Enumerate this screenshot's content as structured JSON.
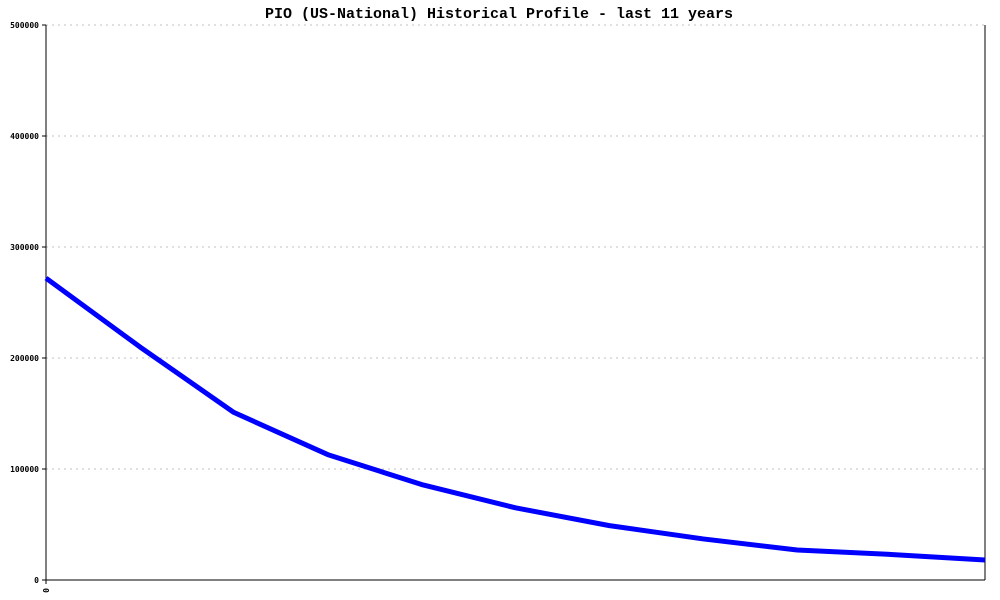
{
  "chart_data": {
    "type": "line",
    "title": "PIO (US-National) Historical Profile - last 11 years",
    "xlabel": "",
    "ylabel": "",
    "ylim": [
      0,
      500000
    ],
    "yticks": [
      "0",
      "100000",
      "200000",
      "300000",
      "400000",
      "500000"
    ],
    "xticks": [
      "0"
    ],
    "grid": true,
    "line_color": "#0000ff",
    "series": [
      {
        "values": [
          272000,
          210000,
          151000,
          113000,
          86000,
          65000,
          49000,
          37000,
          27000,
          23000,
          18000
        ]
      }
    ]
  }
}
